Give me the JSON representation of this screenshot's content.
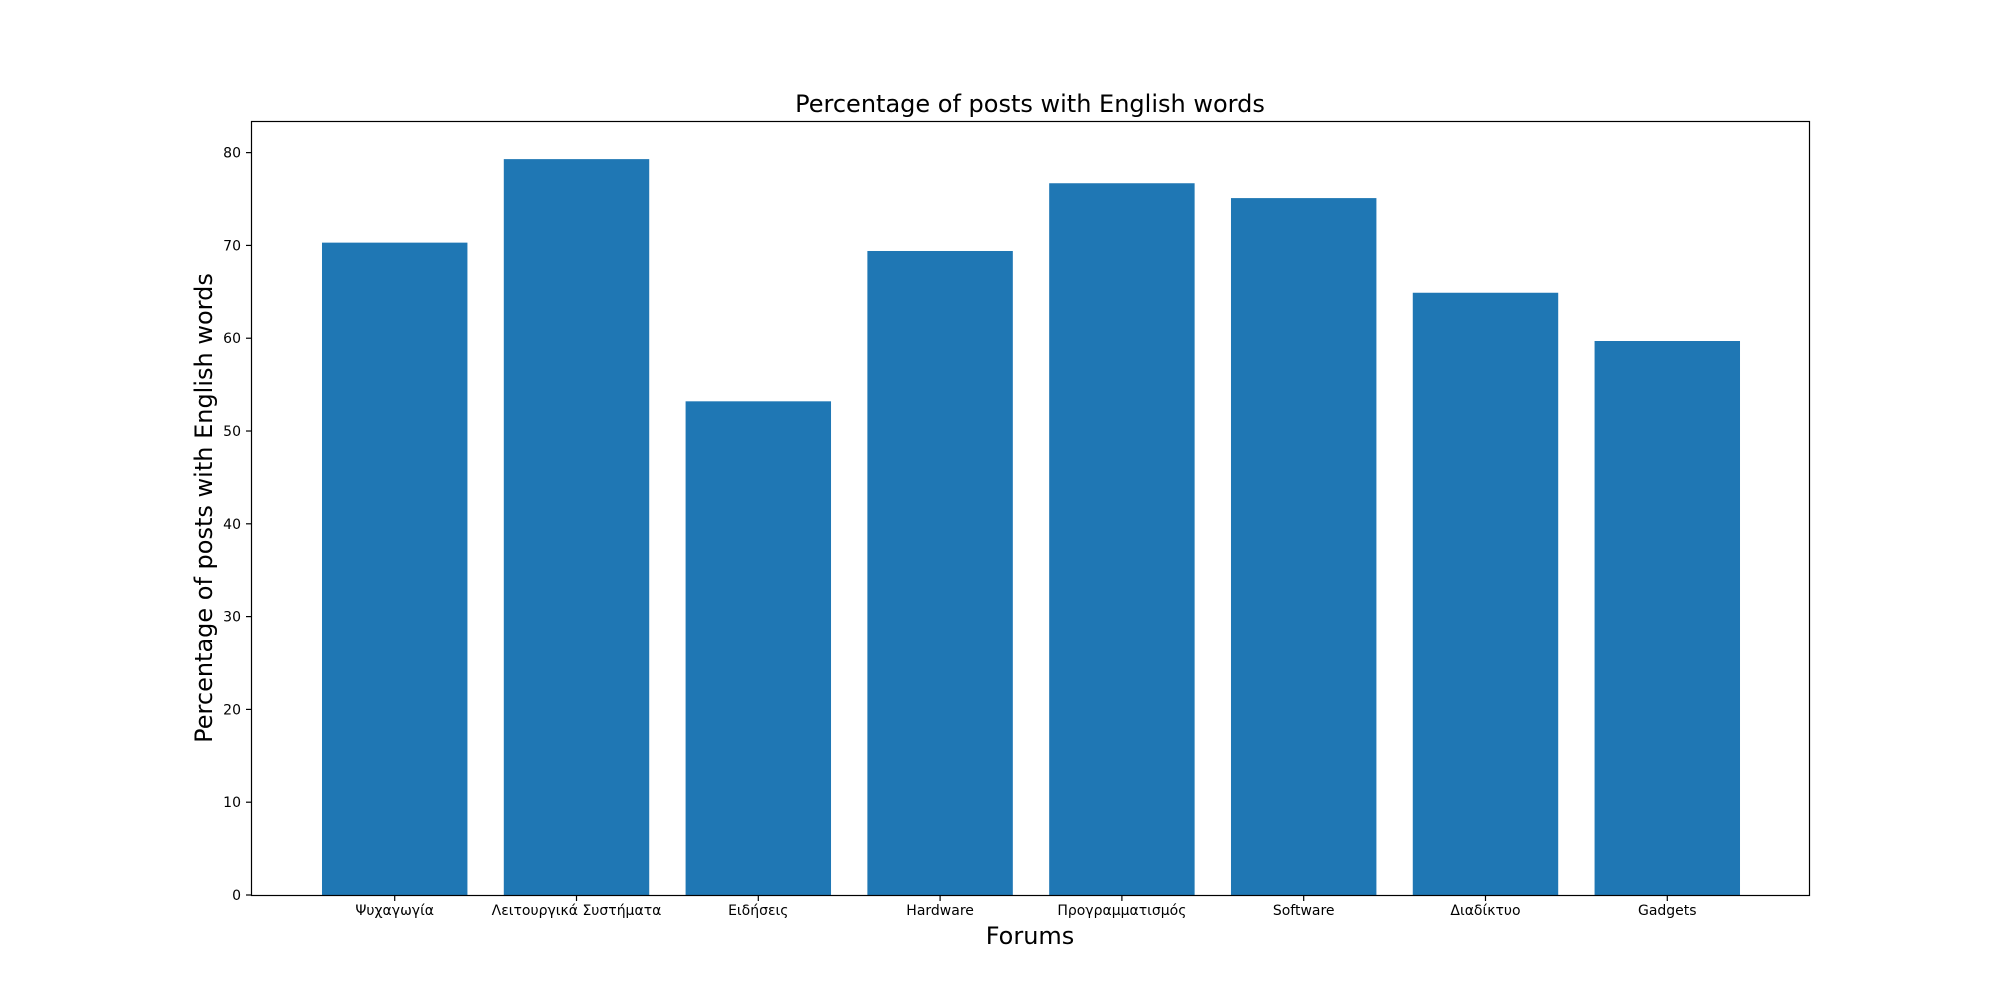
{
  "chart_data": {
    "type": "bar",
    "title": "Percentage of posts with English words",
    "xlabel": "Forums",
    "ylabel": "Percentage of posts with English words",
    "categories": [
      "Ψυχαγωγία",
      "Λειτουργικά Συστήματα",
      "Ειδήσεις",
      "Hardware",
      "Προγραμματισμός",
      "Software",
      "Διαδίκτυο",
      "Gadgets"
    ],
    "values": [
      70.3,
      79.3,
      53.2,
      69.4,
      76.7,
      75.1,
      64.9,
      59.7
    ],
    "ylim": [
      0,
      83.3
    ],
    "yticks": [
      0,
      10,
      20,
      30,
      40,
      50,
      60,
      70,
      80
    ],
    "grid": false,
    "bar_color": "#1f77b4"
  }
}
